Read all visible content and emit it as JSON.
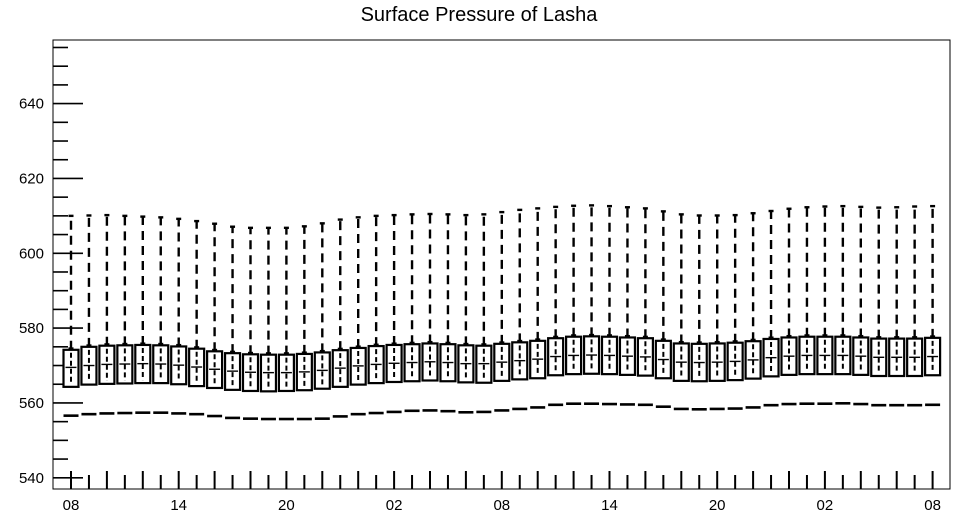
{
  "chart_data": {
    "type": "box",
    "title": "Surface Pressure of Lasha",
    "xlabel": "",
    "ylabel": "",
    "ylim": [
      537,
      657
    ],
    "yticks": [
      540,
      560,
      580,
      600,
      620,
      640
    ],
    "xtick_labels": [
      "08",
      "14",
      "20",
      "02",
      "08",
      "14",
      "20",
      "02",
      "08"
    ],
    "x_unit": "hour",
    "x_step_hours": 3,
    "grid": false,
    "legend": "none",
    "series": [
      {
        "min": [
          556.6,
          557.0,
          557.2,
          557.3,
          557.4,
          557.4,
          557.2,
          557.0,
          556.5,
          556.0,
          555.8,
          555.7,
          555.7,
          555.7,
          555.8,
          556.4,
          557.0,
          557.3,
          557.6,
          557.9,
          558.0,
          557.8,
          557.5,
          557.6,
          558.0,
          558.4,
          558.8,
          559.5,
          559.8,
          559.8,
          559.7,
          559.6,
          559.5,
          559.0,
          558.4,
          558.3,
          558.4,
          558.5,
          558.8,
          559.4,
          559.7,
          559.8,
          559.8,
          559.9,
          559.7,
          559.4,
          559.4,
          559.4,
          559.5
        ],
        "q1": [
          564.3,
          564.9,
          565.1,
          565.2,
          565.3,
          565.3,
          565.0,
          564.5,
          564.0,
          563.5,
          563.2,
          563.1,
          563.2,
          563.4,
          563.8,
          564.3,
          564.9,
          565.3,
          565.6,
          565.8,
          566.0,
          565.8,
          565.5,
          565.4,
          565.9,
          566.3,
          566.6,
          567.4,
          567.7,
          567.8,
          567.7,
          567.5,
          567.3,
          566.6,
          565.9,
          565.8,
          565.9,
          566.1,
          566.5,
          567.1,
          567.5,
          567.7,
          567.7,
          567.7,
          567.5,
          567.2,
          567.2,
          567.2,
          567.4
        ],
        "median": [
          569.5,
          570.0,
          570.3,
          570.4,
          570.5,
          570.4,
          570.1,
          569.6,
          569.0,
          568.5,
          568.2,
          568.1,
          568.1,
          568.3,
          568.7,
          569.3,
          569.9,
          570.3,
          570.6,
          570.8,
          571.0,
          570.8,
          570.5,
          570.5,
          570.9,
          571.3,
          571.7,
          572.4,
          572.7,
          572.8,
          572.7,
          572.5,
          572.3,
          571.6,
          570.9,
          570.8,
          570.9,
          571.1,
          571.5,
          572.1,
          572.5,
          572.7,
          572.7,
          572.7,
          572.5,
          572.2,
          572.2,
          572.2,
          572.4
        ],
        "q3": [
          574.2,
          575.0,
          575.3,
          575.4,
          575.5,
          575.4,
          575.1,
          574.5,
          573.8,
          573.3,
          573.0,
          572.9,
          572.9,
          573.1,
          573.5,
          574.1,
          574.7,
          575.2,
          575.5,
          575.7,
          575.9,
          575.7,
          575.4,
          575.3,
          575.8,
          576.2,
          576.6,
          577.3,
          577.7,
          577.8,
          577.7,
          577.5,
          577.3,
          576.6,
          575.9,
          575.8,
          575.9,
          576.1,
          576.5,
          577.1,
          577.5,
          577.7,
          577.7,
          577.7,
          577.5,
          577.2,
          577.2,
          577.2,
          577.4
        ],
        "max": [
          610.0,
          610.1,
          610.2,
          610.0,
          609.8,
          609.6,
          609.2,
          608.6,
          607.9,
          607.1,
          606.8,
          606.8,
          606.8,
          607.2,
          608.0,
          609.0,
          609.6,
          610.0,
          610.2,
          610.4,
          610.5,
          610.4,
          610.2,
          610.4,
          611.0,
          611.6,
          612.0,
          612.4,
          612.7,
          612.8,
          612.6,
          612.3,
          612.0,
          611.2,
          610.4,
          610.1,
          610.1,
          610.2,
          610.7,
          611.3,
          611.9,
          612.3,
          612.5,
          612.6,
          612.4,
          612.2,
          612.3,
          612.5,
          612.6
        ]
      }
    ]
  }
}
